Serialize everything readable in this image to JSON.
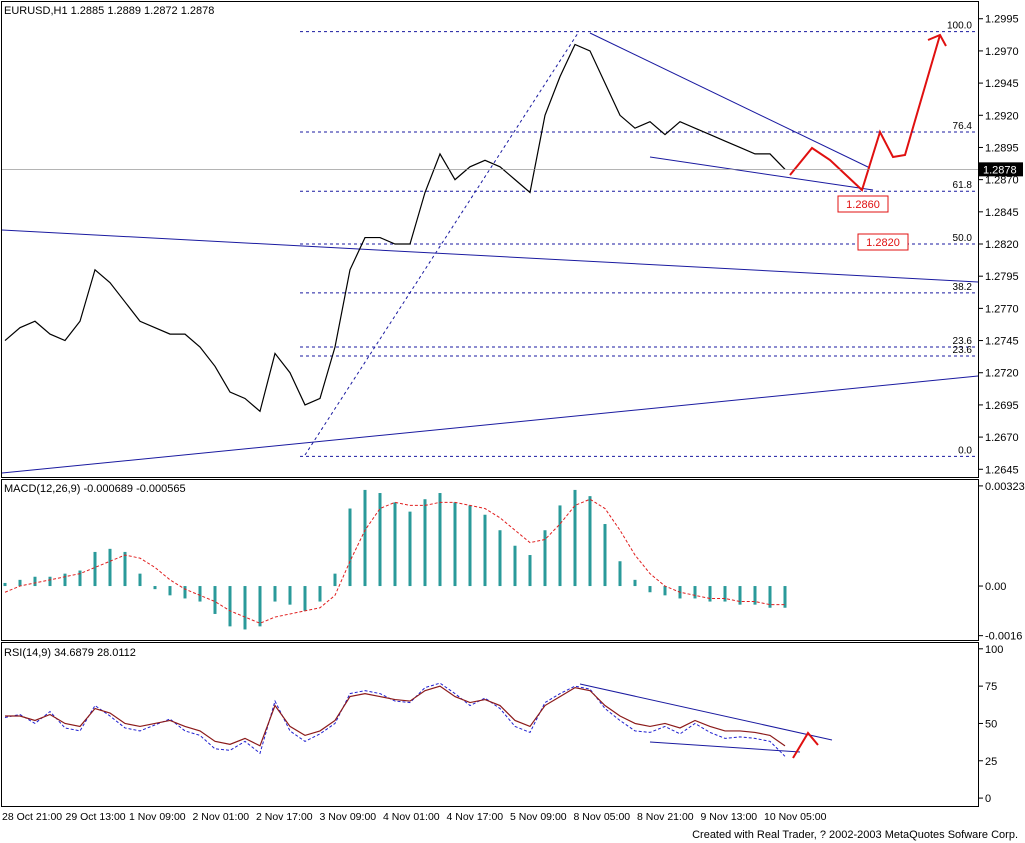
{
  "chart_data": [
    {
      "type": "price-line",
      "title": "EURUSD,H1  1.2885 1.2889 1.2872 1.2878",
      "color": "#000000",
      "ylim": [
        1.2639,
        1.3008
      ],
      "yticks": [
        1.2995,
        {
          "value": 1.297,
          "label": "1.2970"
        },
        1.2945,
        {
          "value": 1.292,
          "label": "1.2920"
        },
        1.2895,
        {
          "value": 1.287,
          "label": "1.2870"
        },
        1.2845,
        {
          "value": 1.282,
          "label": "1.2820"
        },
        1.2795,
        {
          "value": 1.277,
          "label": "1.2770"
        },
        1.2745,
        {
          "value": 1.272,
          "label": "1.2720"
        },
        1.2695,
        {
          "value": 1.267,
          "label": "1.2670"
        },
        1.2645
      ],
      "current_price": 1.2878,
      "values": [
        1.2745,
        1.2755,
        1.276,
        1.275,
        1.2745,
        1.276,
        1.28,
        1.279,
        1.2775,
        1.276,
        1.2755,
        1.275,
        1.275,
        1.274,
        1.2725,
        1.2705,
        1.27,
        1.269,
        1.2735,
        1.272,
        1.2695,
        1.27,
        1.274,
        1.28,
        1.2825,
        1.2825,
        1.282,
        1.282,
        1.286,
        1.289,
        1.287,
        1.288,
        1.2885,
        1.288,
        1.287,
        1.286,
        1.292,
        1.295,
        1.2975,
        1.297,
        1.2945,
        1.292,
        1.291,
        1.2915,
        1.2905,
        1.2915,
        1.291,
        1.2905,
        1.29,
        1.2895,
        1.289,
        1.289,
        1.2878
      ],
      "fib_levels": [
        {
          "level": "100.0",
          "price": 1.2985
        },
        {
          "level": "76.4",
          "price": 1.2907
        },
        {
          "level": "61.8",
          "price": 1.2861
        },
        {
          "level": "50.0",
          "price": 1.282
        },
        {
          "level": "38.2",
          "price": 1.2782
        },
        {
          "level": "23.6",
          "price": 1.274
        },
        {
          "level": "23.6",
          "price": 1.2733
        },
        {
          "level": "0.0",
          "price": 1.2655
        }
      ],
      "annotations": [
        "1.2860",
        "1.2820"
      ]
    },
    {
      "type": "macd",
      "title": "MACD(12,26,9)  -0.000689  -0.000565",
      "color": "#2a9a9a",
      "signal_color": "#e02020",
      "ylim": [
        -0.00174,
        0.00342
      ],
      "yticks": [
        {
          "value": -0.0016,
          "label": "-0.0016"
        },
        {
          "value": 0,
          "label": "0.00"
        },
        0.00323
      ],
      "values": [
        0.0001,
        0.0002,
        0.0003,
        0.0003,
        0.0004,
        0.0005,
        0.0011,
        0.0012,
        0.0011,
        0.0004,
        -0.0001,
        -0.0003,
        -0.0004,
        -0.0005,
        -0.0009,
        -0.0013,
        -0.0014,
        -0.0013,
        -0.0005,
        -0.0006,
        -0.0008,
        -0.0005,
        0.0004,
        0.0025,
        0.0031,
        0.003,
        0.0027,
        0.0024,
        0.0028,
        0.003,
        0.0027,
        0.0026,
        0.0023,
        0.0018,
        0.0013,
        0.001,
        0.0018,
        0.0026,
        0.0031,
        0.0029,
        0.002,
        0.0008,
        0.0002,
        -0.0002,
        -0.0003,
        -0.0004,
        -0.0004,
        -0.0005,
        -0.0005,
        -0.0006,
        -0.0006,
        -0.0007,
        -0.0007
      ],
      "signal": [
        -0.0002,
        0.0,
        0.0001,
        0.0002,
        0.0003,
        0.0004,
        0.0006,
        0.0008,
        0.001,
        0.0009,
        0.0006,
        0.0002,
        -0.0001,
        -0.0003,
        -0.0005,
        -0.0008,
        -0.001,
        -0.0012,
        -0.001,
        -0.0009,
        -0.0008,
        -0.0007,
        -0.0003,
        0.0008,
        0.0018,
        0.0025,
        0.0027,
        0.0026,
        0.0026,
        0.0027,
        0.0027,
        0.0026,
        0.0025,
        0.0022,
        0.0018,
        0.0014,
        0.0015,
        0.002,
        0.0026,
        0.0028,
        0.0025,
        0.0018,
        0.001,
        0.0004,
        0.0,
        -0.0002,
        -0.0003,
        -0.0004,
        -0.0004,
        -0.0005,
        -0.0005,
        -0.0006,
        -0.0006
      ]
    },
    {
      "type": "rsi",
      "title": "RSI(14,9)  34.6879  28.0112",
      "color": "#8b1a1a",
      "signal_color": "#2020d0",
      "ylim": [
        -5.3,
        103.9
      ],
      "yticks": [
        0,
        25,
        50,
        75,
        100
      ],
      "values": [
        55,
        55,
        52,
        56,
        50,
        48,
        60,
        57,
        50,
        48,
        50,
        52,
        48,
        45,
        38,
        36,
        40,
        35,
        62,
        48,
        42,
        45,
        52,
        68,
        70,
        68,
        66,
        65,
        72,
        75,
        68,
        64,
        66,
        62,
        52,
        48,
        62,
        68,
        74,
        72,
        62,
        55,
        50,
        48,
        50,
        47,
        52,
        48,
        45,
        45,
        44,
        42,
        35
      ],
      "signal": [
        54,
        56,
        50,
        58,
        47,
        45,
        62,
        55,
        47,
        45,
        49,
        53,
        45,
        42,
        33,
        32,
        38,
        30,
        65,
        45,
        38,
        43,
        50,
        70,
        72,
        70,
        65,
        64,
        74,
        77,
        70,
        62,
        67,
        60,
        48,
        44,
        64,
        70,
        75,
        73,
        60,
        52,
        45,
        44,
        48,
        43,
        50,
        44,
        40,
        41,
        40,
        38,
        28
      ],
      "x_labels": [
        "28 Oct 21:00",
        "29 Oct 13:00",
        "1 Nov 09:00",
        "2 Nov 01:00",
        "2 Nov 17:00",
        "3 Nov 09:00",
        "4 Nov 01:00",
        "4 Nov 17:00",
        "5 Nov 09:00",
        "8 Nov 05:00",
        "8 Nov 21:00",
        "9 Nov 13:00",
        "10 Nov 05:00"
      ]
    }
  ],
  "footer": "Created with Real Trader, ? 2002-2003 MetaQuotes Sofware Corp."
}
